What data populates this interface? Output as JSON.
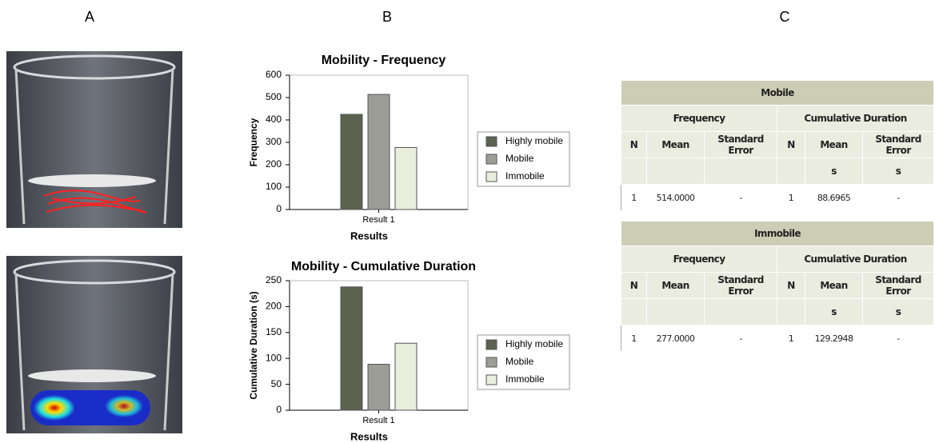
{
  "panels": [
    "A",
    "B",
    "C"
  ],
  "chart_data": [
    {
      "type": "bar",
      "title": "Mobility - Frequency",
      "y_label": "Frequency",
      "x_label": "Results",
      "categories": [
        "Result 1"
      ],
      "series": [
        {
          "name": "Highly mobile",
          "color": "#5c6150",
          "values": [
            425
          ]
        },
        {
          "name": "Mobile",
          "color": "#9c9d95",
          "values": [
            514
          ]
        },
        {
          "name": "Immobile",
          "color": "#e9eedd",
          "values": [
            277
          ]
        }
      ],
      "ylim": [
        0,
        600
      ],
      "yticks": [
        0,
        100,
        200,
        300,
        400,
        500,
        600
      ],
      "legend": "right"
    },
    {
      "type": "bar",
      "title": "Mobility - Cumulative Duration",
      "y_label": "Cumulative Duration (s)",
      "x_label": "Results",
      "categories": [
        "Result 1"
      ],
      "series": [
        {
          "name": "Highly mobile",
          "color": "#5c6150",
          "values": [
            238
          ]
        },
        {
          "name": "Mobile",
          "color": "#9c9d95",
          "values": [
            88.6965
          ]
        },
        {
          "name": "Immobile",
          "color": "#e9eedd",
          "values": [
            129.2948
          ]
        }
      ],
      "ylim": [
        0,
        250
      ],
      "yticks": [
        0,
        50,
        100,
        150,
        200,
        250
      ],
      "legend": "right"
    }
  ],
  "tables": [
    {
      "title": "Mobile",
      "groups": [
        "Frequency",
        "Cumulative Duration"
      ],
      "columns": [
        "N",
        "Mean",
        "Standard Error",
        "N",
        "Mean",
        "Standard Error"
      ],
      "units": [
        null,
        null,
        null,
        null,
        "s",
        "s"
      ],
      "rows": [
        [
          "1",
          "514.0000",
          "-",
          "1",
          "88.6965",
          "-"
        ]
      ]
    },
    {
      "title": "Immobile",
      "groups": [
        "Frequency",
        "Cumulative Duration"
      ],
      "columns": [
        "N",
        "Mean",
        "Standard Error",
        "N",
        "Mean",
        "Standard Error"
      ],
      "units": [
        null,
        null,
        null,
        null,
        "s",
        "s"
      ],
      "rows": [
        [
          "1",
          "277.0000",
          "-",
          "1",
          "129.2948",
          "-"
        ]
      ]
    }
  ]
}
